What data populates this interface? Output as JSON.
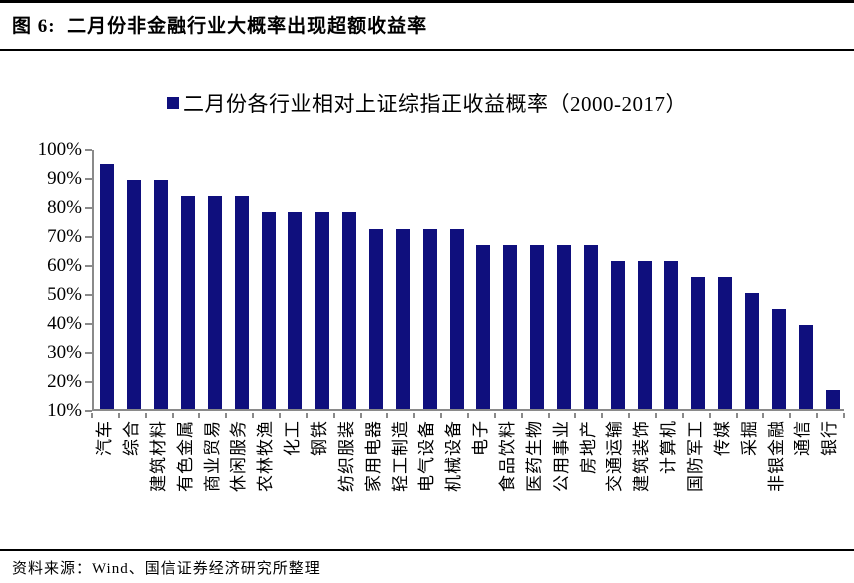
{
  "header": {
    "title": "图 6:  二月份非金融行业大概率出现超额收益率"
  },
  "legend": {
    "label": "二月份各行业相对上证综指正收益概率（2000-2017）",
    "marker_color": "#0f0f7d"
  },
  "footer": {
    "source": "资料来源：Wind、国信证券经济研究所整理"
  },
  "colors": {
    "bar": "#0f0f7d",
    "axis": "#8a8a8a",
    "rule": "#000000",
    "background": "#ffffff"
  },
  "chart_data": {
    "type": "bar",
    "title": "二月份各行业相对上证综指正收益概率（2000-2017）",
    "categories": [
      "汽车",
      "综合",
      "建筑材料",
      "有色金属",
      "商业贸易",
      "休闲服务",
      "农林牧渔",
      "化工",
      "钢铁",
      "纺织服装",
      "家用电器",
      "轻工制造",
      "电气设备",
      "机械设备",
      "电子",
      "食品饮料",
      "医药生物",
      "公用事业",
      "房地产",
      "交通运输",
      "建筑装饰",
      "计算机",
      "国防军工",
      "传媒",
      "采掘",
      "非银金融",
      "通信",
      "银行"
    ],
    "values": [
      94.4,
      88.9,
      88.9,
      83.3,
      83.3,
      83.3,
      77.8,
      77.8,
      77.8,
      77.8,
      72.2,
      72.2,
      72.2,
      72.2,
      66.7,
      66.7,
      66.7,
      66.7,
      66.7,
      61.1,
      61.1,
      61.1,
      55.6,
      55.6,
      50.0,
      44.4,
      38.9,
      16.7
    ],
    "unit": "%",
    "xlabel": "",
    "ylabel": "",
    "ylim": [
      10,
      100
    ],
    "ytick_labels": [
      "100%",
      "90%",
      "80%",
      "70%",
      "60%",
      "50%",
      "40%",
      "30%",
      "20%",
      "10%"
    ],
    "bar_color": "#0f0f7d",
    "grid": false,
    "legend_position": "top-center"
  }
}
